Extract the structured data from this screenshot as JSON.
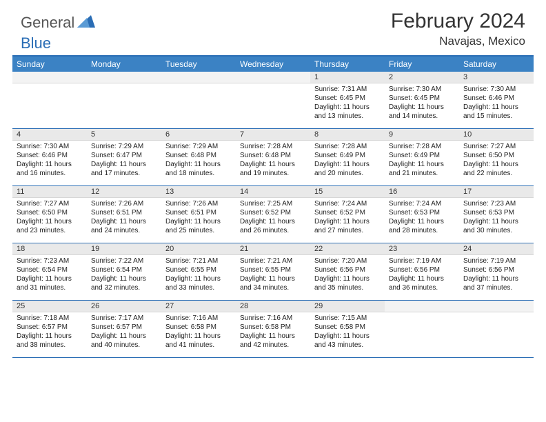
{
  "logo": {
    "text1": "General",
    "text2": "Blue"
  },
  "title": "February 2024",
  "location": "Navajas, Mexico",
  "colors": {
    "header_bg": "#3b82c4",
    "border": "#2a6db5",
    "daynum_bg": "#e9e9e9"
  },
  "day_headers": [
    "Sunday",
    "Monday",
    "Tuesday",
    "Wednesday",
    "Thursday",
    "Friday",
    "Saturday"
  ],
  "weeks": [
    [
      {
        "empty": true
      },
      {
        "empty": true
      },
      {
        "empty": true
      },
      {
        "empty": true
      },
      {
        "n": "1",
        "sunrise": "7:31 AM",
        "sunset": "6:45 PM",
        "daylight": "11 hours and 13 minutes."
      },
      {
        "n": "2",
        "sunrise": "7:30 AM",
        "sunset": "6:45 PM",
        "daylight": "11 hours and 14 minutes."
      },
      {
        "n": "3",
        "sunrise": "7:30 AM",
        "sunset": "6:46 PM",
        "daylight": "11 hours and 15 minutes."
      }
    ],
    [
      {
        "n": "4",
        "sunrise": "7:30 AM",
        "sunset": "6:46 PM",
        "daylight": "11 hours and 16 minutes."
      },
      {
        "n": "5",
        "sunrise": "7:29 AM",
        "sunset": "6:47 PM",
        "daylight": "11 hours and 17 minutes."
      },
      {
        "n": "6",
        "sunrise": "7:29 AM",
        "sunset": "6:48 PM",
        "daylight": "11 hours and 18 minutes."
      },
      {
        "n": "7",
        "sunrise": "7:28 AM",
        "sunset": "6:48 PM",
        "daylight": "11 hours and 19 minutes."
      },
      {
        "n": "8",
        "sunrise": "7:28 AM",
        "sunset": "6:49 PM",
        "daylight": "11 hours and 20 minutes."
      },
      {
        "n": "9",
        "sunrise": "7:28 AM",
        "sunset": "6:49 PM",
        "daylight": "11 hours and 21 minutes."
      },
      {
        "n": "10",
        "sunrise": "7:27 AM",
        "sunset": "6:50 PM",
        "daylight": "11 hours and 22 minutes."
      }
    ],
    [
      {
        "n": "11",
        "sunrise": "7:27 AM",
        "sunset": "6:50 PM",
        "daylight": "11 hours and 23 minutes."
      },
      {
        "n": "12",
        "sunrise": "7:26 AM",
        "sunset": "6:51 PM",
        "daylight": "11 hours and 24 minutes."
      },
      {
        "n": "13",
        "sunrise": "7:26 AM",
        "sunset": "6:51 PM",
        "daylight": "11 hours and 25 minutes."
      },
      {
        "n": "14",
        "sunrise": "7:25 AM",
        "sunset": "6:52 PM",
        "daylight": "11 hours and 26 minutes."
      },
      {
        "n": "15",
        "sunrise": "7:24 AM",
        "sunset": "6:52 PM",
        "daylight": "11 hours and 27 minutes."
      },
      {
        "n": "16",
        "sunrise": "7:24 AM",
        "sunset": "6:53 PM",
        "daylight": "11 hours and 28 minutes."
      },
      {
        "n": "17",
        "sunrise": "7:23 AM",
        "sunset": "6:53 PM",
        "daylight": "11 hours and 30 minutes."
      }
    ],
    [
      {
        "n": "18",
        "sunrise": "7:23 AM",
        "sunset": "6:54 PM",
        "daylight": "11 hours and 31 minutes."
      },
      {
        "n": "19",
        "sunrise": "7:22 AM",
        "sunset": "6:54 PM",
        "daylight": "11 hours and 32 minutes."
      },
      {
        "n": "20",
        "sunrise": "7:21 AM",
        "sunset": "6:55 PM",
        "daylight": "11 hours and 33 minutes."
      },
      {
        "n": "21",
        "sunrise": "7:21 AM",
        "sunset": "6:55 PM",
        "daylight": "11 hours and 34 minutes."
      },
      {
        "n": "22",
        "sunrise": "7:20 AM",
        "sunset": "6:56 PM",
        "daylight": "11 hours and 35 minutes."
      },
      {
        "n": "23",
        "sunrise": "7:19 AM",
        "sunset": "6:56 PM",
        "daylight": "11 hours and 36 minutes."
      },
      {
        "n": "24",
        "sunrise": "7:19 AM",
        "sunset": "6:56 PM",
        "daylight": "11 hours and 37 minutes."
      }
    ],
    [
      {
        "n": "25",
        "sunrise": "7:18 AM",
        "sunset": "6:57 PM",
        "daylight": "11 hours and 38 minutes."
      },
      {
        "n": "26",
        "sunrise": "7:17 AM",
        "sunset": "6:57 PM",
        "daylight": "11 hours and 40 minutes."
      },
      {
        "n": "27",
        "sunrise": "7:16 AM",
        "sunset": "6:58 PM",
        "daylight": "11 hours and 41 minutes."
      },
      {
        "n": "28",
        "sunrise": "7:16 AM",
        "sunset": "6:58 PM",
        "daylight": "11 hours and 42 minutes."
      },
      {
        "n": "29",
        "sunrise": "7:15 AM",
        "sunset": "6:58 PM",
        "daylight": "11 hours and 43 minutes."
      },
      {
        "empty": true
      },
      {
        "empty": true
      }
    ]
  ],
  "labels": {
    "sunrise": "Sunrise:",
    "sunset": "Sunset:",
    "daylight": "Daylight:"
  }
}
